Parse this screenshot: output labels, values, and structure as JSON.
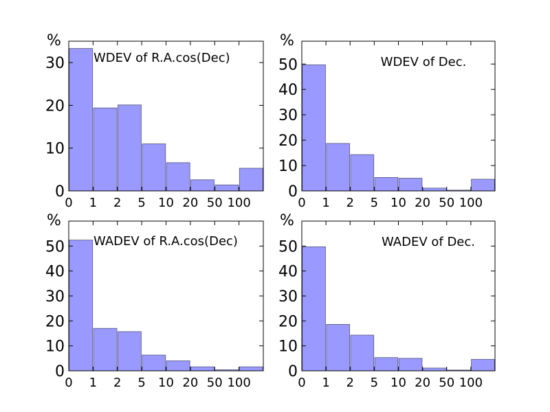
{
  "chart_data": [
    {
      "type": "bar",
      "title": "WDEV of R.A.cos(Dec)",
      "ylabel_unit": "%",
      "xtick_labels": [
        "0",
        "1",
        "2",
        "5",
        "10",
        "20",
        "50",
        "100"
      ],
      "categories": [
        "0-1",
        "1-2",
        "2-5",
        "5-10",
        "10-20",
        "20-50",
        "50-100",
        ">100"
      ],
      "values": [
        33.3,
        19.4,
        20.1,
        11.0,
        6.6,
        2.6,
        1.4,
        5.3
      ],
      "ylim": [
        0,
        35
      ],
      "yticks": [
        0,
        10,
        20,
        30
      ]
    },
    {
      "type": "bar",
      "title": "WDEV of Dec.",
      "ylabel_unit": "%",
      "xtick_labels": [
        "0",
        "1",
        "2",
        "5",
        "10",
        "20",
        "50",
        "100"
      ],
      "categories": [
        "0-1",
        "1-2",
        "2-5",
        "5-10",
        "10-20",
        "20-50",
        "50-100",
        ">100"
      ],
      "values": [
        49.7,
        18.7,
        14.3,
        5.3,
        5.0,
        1.1,
        0.3,
        4.6
      ],
      "ylim": [
        0,
        59
      ],
      "yticks": [
        0,
        10,
        20,
        30,
        40,
        50
      ]
    },
    {
      "type": "bar",
      "title": "WADEV of R.A.cos(Dec)",
      "ylabel_unit": "%",
      "xtick_labels": [
        "0",
        "1",
        "2",
        "5",
        "10",
        "20",
        "50",
        "100"
      ],
      "categories": [
        "0-1",
        "1-2",
        "2-5",
        "5-10",
        "10-20",
        "20-50",
        "50-100",
        ">100"
      ],
      "values": [
        52.4,
        17.0,
        15.7,
        6.3,
        4.0,
        1.6,
        0.4,
        1.6
      ],
      "ylim": [
        0,
        60
      ],
      "yticks": [
        0,
        10,
        20,
        30,
        40,
        50
      ]
    },
    {
      "type": "bar",
      "title": "WADEV of Dec.",
      "ylabel_unit": "%",
      "xtick_labels": [
        "0",
        "1",
        "2",
        "5",
        "10",
        "20",
        "50",
        "100"
      ],
      "categories": [
        "0-1",
        "1-2",
        "2-5",
        "5-10",
        "10-20",
        "20-50",
        "50-100",
        ">100"
      ],
      "values": [
        49.7,
        18.6,
        14.3,
        5.3,
        5.0,
        1.1,
        0.3,
        4.6
      ],
      "ylim": [
        0,
        60
      ],
      "yticks": [
        0,
        10,
        20,
        30,
        40,
        50
      ]
    }
  ]
}
